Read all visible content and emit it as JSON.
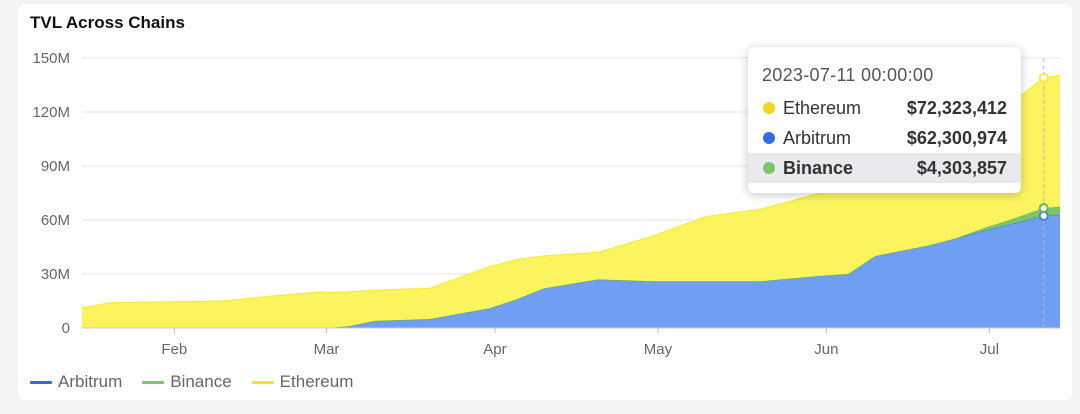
{
  "chart_title": "TVL Across Chains",
  "legend": [
    {
      "label": "Arbitrum",
      "color": "#2b6fd6"
    },
    {
      "label": "Binance",
      "color": "#7cc46a"
    },
    {
      "label": "Ethereum",
      "color": "#f5df3a"
    }
  ],
  "tooltip": {
    "date": "2023-07-11 00:00:00",
    "rows": [
      {
        "name": "Ethereum",
        "value": "$72,323,412",
        "color": "#f5d523",
        "highlighted": false
      },
      {
        "name": "Arbitrum",
        "value": "$62,300,974",
        "color": "#2d6fe0",
        "highlighted": false
      },
      {
        "name": "Binance",
        "value": "$4,303,857",
        "color": "#7cc46a",
        "highlighted": true
      }
    ]
  },
  "chart_data": {
    "type": "area",
    "stacked": true,
    "title": "TVL Across Chains",
    "xlabel": "",
    "ylabel": "",
    "x_range": [
      "2023-01-15",
      "2023-07-14"
    ],
    "x_ticks": [
      {
        "date": "2023-02-01",
        "label": "Feb"
      },
      {
        "date": "2023-03-01",
        "label": "Mar"
      },
      {
        "date": "2023-04-01",
        "label": "Apr"
      },
      {
        "date": "2023-05-01",
        "label": "May"
      },
      {
        "date": "2023-06-01",
        "label": "Jun"
      },
      {
        "date": "2023-07-01",
        "label": "Jul"
      }
    ],
    "ylim": [
      0,
      150000000
    ],
    "y_ticks": [
      {
        "value": 0,
        "label": "0"
      },
      {
        "value": 30000000,
        "label": "30M"
      },
      {
        "value": 60000000,
        "label": "60M"
      },
      {
        "value": 90000000,
        "label": "90M"
      },
      {
        "value": 120000000,
        "label": "120M"
      },
      {
        "value": 150000000,
        "label": "150M"
      }
    ],
    "grid": true,
    "legend_position": "bottom-left",
    "highlight_date": "2023-07-11",
    "series": [
      {
        "name": "Arbitrum",
        "color": "#6f9ef2",
        "line_color": "#4a82e8",
        "points": [
          [
            "2023-03-01",
            0
          ],
          [
            "2023-03-05",
            1000000
          ],
          [
            "2023-03-10",
            4000000
          ],
          [
            "2023-03-20",
            5000000
          ],
          [
            "2023-03-31",
            11000000
          ],
          [
            "2023-04-05",
            16000000
          ],
          [
            "2023-04-10",
            22000000
          ],
          [
            "2023-04-20",
            27000000
          ],
          [
            "2023-04-30",
            26000000
          ],
          [
            "2023-05-10",
            26000000
          ],
          [
            "2023-05-20",
            26000000
          ],
          [
            "2023-05-31",
            29000000
          ],
          [
            "2023-06-05",
            30000000
          ],
          [
            "2023-06-10",
            40000000
          ],
          [
            "2023-06-20",
            46000000
          ],
          [
            "2023-06-30",
            54000000
          ],
          [
            "2023-07-11",
            62300974
          ],
          [
            "2023-07-14",
            63000000
          ]
        ]
      },
      {
        "name": "Binance",
        "color": "#7cc46a",
        "line_color": "#66b84f",
        "points": [
          [
            "2023-03-01",
            0
          ],
          [
            "2023-06-25",
            0
          ],
          [
            "2023-06-30",
            1500000
          ],
          [
            "2023-07-05",
            2500000
          ],
          [
            "2023-07-11",
            4303857
          ],
          [
            "2023-07-14",
            4400000
          ]
        ]
      },
      {
        "name": "Ethereum",
        "color": "#fbf45f",
        "line_color": "#f4ec35",
        "points": [
          [
            "2023-01-15",
            11000000
          ],
          [
            "2023-01-20",
            14000000
          ],
          [
            "2023-01-31",
            14500000
          ],
          [
            "2023-02-10",
            15000000
          ],
          [
            "2023-02-20",
            18000000
          ],
          [
            "2023-02-28",
            20000000
          ],
          [
            "2023-03-05",
            19000000
          ],
          [
            "2023-03-10",
            17000000
          ],
          [
            "2023-03-20",
            17000000
          ],
          [
            "2023-03-31",
            23000000
          ],
          [
            "2023-04-05",
            22000000
          ],
          [
            "2023-04-10",
            18000000
          ],
          [
            "2023-04-20",
            15000000
          ],
          [
            "2023-04-30",
            25000000
          ],
          [
            "2023-05-10",
            36000000
          ],
          [
            "2023-05-20",
            40000000
          ],
          [
            "2023-05-31",
            46000000
          ],
          [
            "2023-06-05",
            64000000
          ],
          [
            "2023-06-10",
            55000000
          ],
          [
            "2023-06-20",
            55000000
          ],
          [
            "2023-06-30",
            58000000
          ],
          [
            "2023-07-11",
            72323412
          ],
          [
            "2023-07-14",
            73000000
          ]
        ]
      }
    ]
  }
}
